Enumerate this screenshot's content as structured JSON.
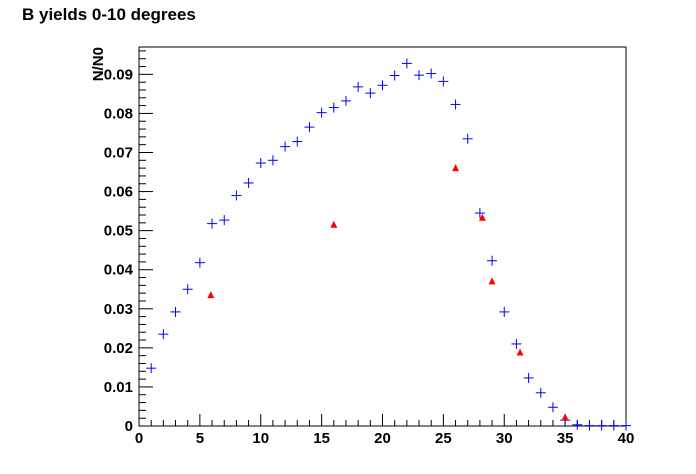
{
  "chart_data": {
    "type": "scatter",
    "title": "B yields 0-10 degrees",
    "xlabel": "",
    "ylabel": "N/N0",
    "xlim": [
      0,
      40
    ],
    "ylim": [
      0,
      0.097
    ],
    "grid": false,
    "x_ticks": [
      "0",
      "5",
      "10",
      "15",
      "20",
      "25",
      "30",
      "35",
      "40"
    ],
    "y_ticks": [
      "0",
      "0.01",
      "0.02",
      "0.03",
      "0.04",
      "0.05",
      "0.06",
      "0.07",
      "0.08",
      "0.09"
    ],
    "series": [
      {
        "marker": "cross",
        "color": "#0000ff",
        "points": [
          [
            1,
            0.0148
          ],
          [
            2,
            0.0235
          ],
          [
            3,
            0.0292
          ],
          [
            4,
            0.035
          ],
          [
            5,
            0.0418
          ],
          [
            6,
            0.0518
          ],
          [
            7,
            0.0527
          ],
          [
            8,
            0.059
          ],
          [
            9,
            0.0622
          ],
          [
            10,
            0.0673
          ],
          [
            11,
            0.068
          ],
          [
            12,
            0.0715
          ],
          [
            13,
            0.0728
          ],
          [
            14,
            0.0765
          ],
          [
            15,
            0.0802
          ],
          [
            16,
            0.0815
          ],
          [
            17,
            0.0832
          ],
          [
            18,
            0.0868
          ],
          [
            19,
            0.0852
          ],
          [
            20,
            0.0872
          ],
          [
            21,
            0.0897
          ],
          [
            22,
            0.0928
          ],
          [
            23,
            0.0898
          ],
          [
            24,
            0.0902
          ],
          [
            25,
            0.0882
          ],
          [
            26,
            0.0823
          ],
          [
            27,
            0.0735
          ],
          [
            28,
            0.0545
          ],
          [
            29,
            0.0423
          ],
          [
            30,
            0.0292
          ],
          [
            31,
            0.021
          ],
          [
            32,
            0.0123
          ],
          [
            33,
            0.0085
          ],
          [
            34,
            0.0048
          ],
          [
            35,
            0.0015
          ],
          [
            36,
            0.0003
          ],
          [
            37,
            0.0001
          ],
          [
            38,
            0.0001
          ],
          [
            39,
            0.0001
          ],
          [
            40,
            0.0001
          ]
        ]
      },
      {
        "marker": "triangle",
        "color": "#ff0000",
        "points": [
          [
            5.9,
            0.0335
          ],
          [
            16.0,
            0.0515
          ],
          [
            26.0,
            0.066
          ],
          [
            28.2,
            0.0533
          ],
          [
            29.0,
            0.037
          ],
          [
            31.3,
            0.0188
          ],
          [
            35.0,
            0.0022
          ]
        ]
      }
    ]
  }
}
